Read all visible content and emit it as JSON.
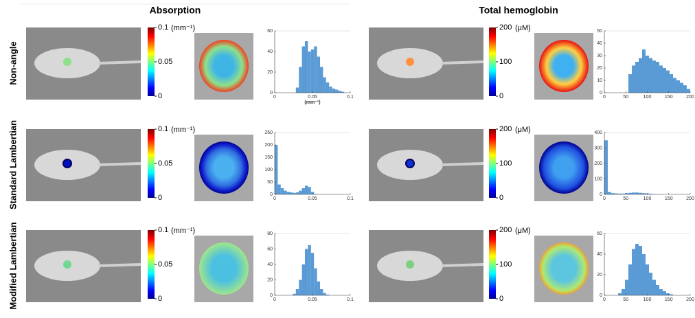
{
  "columns": [
    {
      "title": "Absorption",
      "colorbar": {
        "unit": "(mm⁻¹)",
        "lim": [
          0,
          0.1
        ],
        "ticks": [
          0,
          0.05,
          0.1
        ]
      }
    },
    {
      "title": "Total hemoglobin",
      "colorbar": {
        "unit": "(μM)",
        "lim": [
          0,
          200
        ],
        "ticks": [
          0,
          100,
          200
        ]
      }
    }
  ],
  "rows": [
    "Non-angle",
    "Standard Lambertian",
    "Modified Lambertian"
  ],
  "chart_data": [
    {
      "type": "histogram",
      "color": "#5b9bd5",
      "xlabel": "(mm⁻¹)",
      "xlim": [
        0,
        0.1
      ],
      "xticks": [
        0,
        0.05,
        0.1
      ],
      "ylim": [
        0,
        60
      ],
      "yticks": [
        0,
        20,
        40,
        60
      ],
      "bins": [
        0,
        0.004,
        0.008,
        0.012,
        0.016,
        0.02,
        0.024,
        0.028,
        0.032,
        0.036,
        0.04,
        0.044,
        0.048,
        0.052,
        0.056,
        0.06,
        0.064,
        0.068,
        0.072,
        0.076,
        0.08,
        0.084,
        0.088,
        0.092,
        0.096,
        0.1
      ],
      "values": [
        0,
        0,
        0,
        0,
        0,
        0,
        0,
        5,
        25,
        45,
        50,
        40,
        42,
        45,
        35,
        25,
        15,
        10,
        6,
        4,
        3,
        2,
        1,
        0,
        0
      ]
    },
    {
      "type": "histogram",
      "color": "#5b9bd5",
      "xlim": [
        0,
        200
      ],
      "xticks": [
        0,
        50,
        100,
        150,
        200
      ],
      "ylim": [
        0,
        50
      ],
      "yticks": [
        0,
        10,
        20,
        30,
        40,
        50
      ],
      "bins": [
        0,
        8,
        16,
        24,
        32,
        40,
        48,
        56,
        64,
        72,
        80,
        88,
        96,
        104,
        112,
        120,
        128,
        136,
        144,
        152,
        160,
        168,
        176,
        184,
        192,
        200
      ],
      "values": [
        0,
        0,
        0,
        0,
        0,
        0,
        0,
        15,
        22,
        25,
        28,
        35,
        30,
        28,
        26,
        25,
        22,
        20,
        18,
        15,
        12,
        10,
        8,
        6,
        3
      ]
    },
    {
      "type": "histogram",
      "color": "#5b9bd5",
      "xlim": [
        0,
        0.1
      ],
      "xticks": [
        0,
        0.05,
        0.1
      ],
      "ylim": [
        0,
        250
      ],
      "yticks": [
        0,
        50,
        100,
        150,
        200,
        250
      ],
      "bins": [
        0,
        0.004,
        0.008,
        0.012,
        0.016,
        0.02,
        0.024,
        0.028,
        0.032,
        0.036,
        0.04,
        0.044,
        0.048,
        0.052,
        0.056,
        0.06,
        0.064,
        0.068,
        0.072,
        0.076,
        0.08,
        0.084,
        0.088,
        0.092,
        0.096,
        0.1
      ],
      "values": [
        200,
        40,
        25,
        15,
        10,
        8,
        6,
        8,
        15,
        25,
        35,
        30,
        10,
        2,
        0,
        0,
        0,
        0,
        0,
        0,
        0,
        0,
        0,
        0,
        0
      ]
    },
    {
      "type": "histogram",
      "color": "#5b9bd5",
      "xlim": [
        0,
        200
      ],
      "xticks": [
        0,
        50,
        100,
        150,
        200
      ],
      "ylim": [
        0,
        400
      ],
      "yticks": [
        0,
        100,
        200,
        300,
        400
      ],
      "bins": [
        0,
        8,
        16,
        24,
        32,
        40,
        48,
        56,
        64,
        72,
        80,
        88,
        96,
        104,
        112,
        120,
        128,
        136,
        144,
        152,
        160,
        168,
        176,
        184,
        192,
        200
      ],
      "values": [
        350,
        15,
        8,
        6,
        5,
        5,
        8,
        10,
        12,
        12,
        10,
        8,
        6,
        4,
        2,
        1,
        0,
        0,
        0,
        0,
        0,
        0,
        0,
        0,
        0
      ]
    },
    {
      "type": "histogram",
      "color": "#5b9bd5",
      "xlim": [
        0,
        0.1
      ],
      "xticks": [
        0,
        0.05,
        0.1
      ],
      "ylim": [
        0,
        80
      ],
      "yticks": [
        0,
        20,
        40,
        60,
        80
      ],
      "bins": [
        0,
        0.004,
        0.008,
        0.012,
        0.016,
        0.02,
        0.024,
        0.028,
        0.032,
        0.036,
        0.04,
        0.044,
        0.048,
        0.052,
        0.056,
        0.06,
        0.064,
        0.068,
        0.072,
        0.076,
        0.08,
        0.084,
        0.088,
        0.092,
        0.096,
        0.1
      ],
      "values": [
        0,
        0,
        0,
        0,
        0,
        0,
        2,
        8,
        20,
        40,
        60,
        65,
        55,
        35,
        18,
        8,
        3,
        1,
        0,
        0,
        0,
        0,
        0,
        0,
        0
      ]
    },
    {
      "type": "histogram",
      "color": "#5b9bd5",
      "xlim": [
        0,
        200
      ],
      "xticks": [
        0,
        50,
        100,
        150,
        200
      ],
      "ylim": [
        0,
        60
      ],
      "yticks": [
        0,
        20,
        40,
        60
      ],
      "bins": [
        0,
        8,
        16,
        24,
        32,
        40,
        48,
        56,
        64,
        72,
        80,
        88,
        96,
        104,
        112,
        120,
        128,
        136,
        144,
        152,
        160,
        168,
        176,
        184,
        192,
        200
      ],
      "values": [
        0,
        0,
        0,
        0,
        2,
        6,
        15,
        30,
        45,
        50,
        48,
        40,
        30,
        22,
        15,
        10,
        6,
        4,
        2,
        1,
        0,
        0,
        0,
        0,
        0
      ]
    }
  ]
}
